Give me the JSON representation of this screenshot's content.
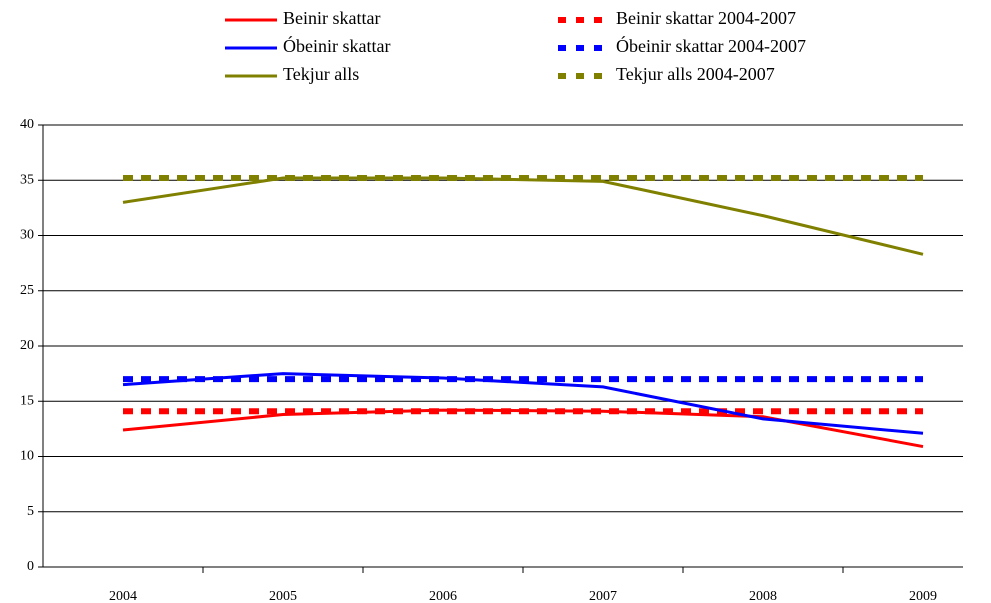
{
  "chart_data": {
    "type": "line",
    "categories": [
      "2004",
      "2005",
      "2006",
      "2007",
      "2008",
      "2009"
    ],
    "series": [
      {
        "name": "Beinir skattar",
        "color": "#ff0000",
        "dashed": false,
        "values": [
          12.4,
          13.8,
          14.2,
          14.1,
          13.6,
          10.9
        ]
      },
      {
        "name": "Beinir skattar 2004-2007",
        "color": "#ff0000",
        "dashed": true,
        "values": [
          14.1,
          14.1,
          14.1,
          14.1,
          14.1,
          14.1
        ]
      },
      {
        "name": "Óbeinir skattar",
        "color": "#0000ff",
        "dashed": false,
        "values": [
          16.5,
          17.5,
          17.1,
          16.3,
          13.4,
          12.1
        ]
      },
      {
        "name": "Óbeinir skattar 2004-2007",
        "color": "#0000ff",
        "dashed": true,
        "values": [
          17.0,
          17.0,
          17.0,
          17.0,
          17.0,
          17.0
        ]
      },
      {
        "name": "Tekjur alls",
        "color": "#808000",
        "dashed": false,
        "values": [
          33.0,
          35.2,
          35.2,
          34.9,
          31.8,
          28.3
        ]
      },
      {
        "name": "Tekjur alls 2004-2007",
        "color": "#808000",
        "dashed": true,
        "values": [
          35.2,
          35.2,
          35.2,
          35.2,
          35.2,
          35.2
        ]
      }
    ],
    "ylim": [
      0,
      40
    ],
    "yticks": [
      0,
      5,
      10,
      15,
      20,
      25,
      30,
      35,
      40
    ],
    "grid": true
  }
}
